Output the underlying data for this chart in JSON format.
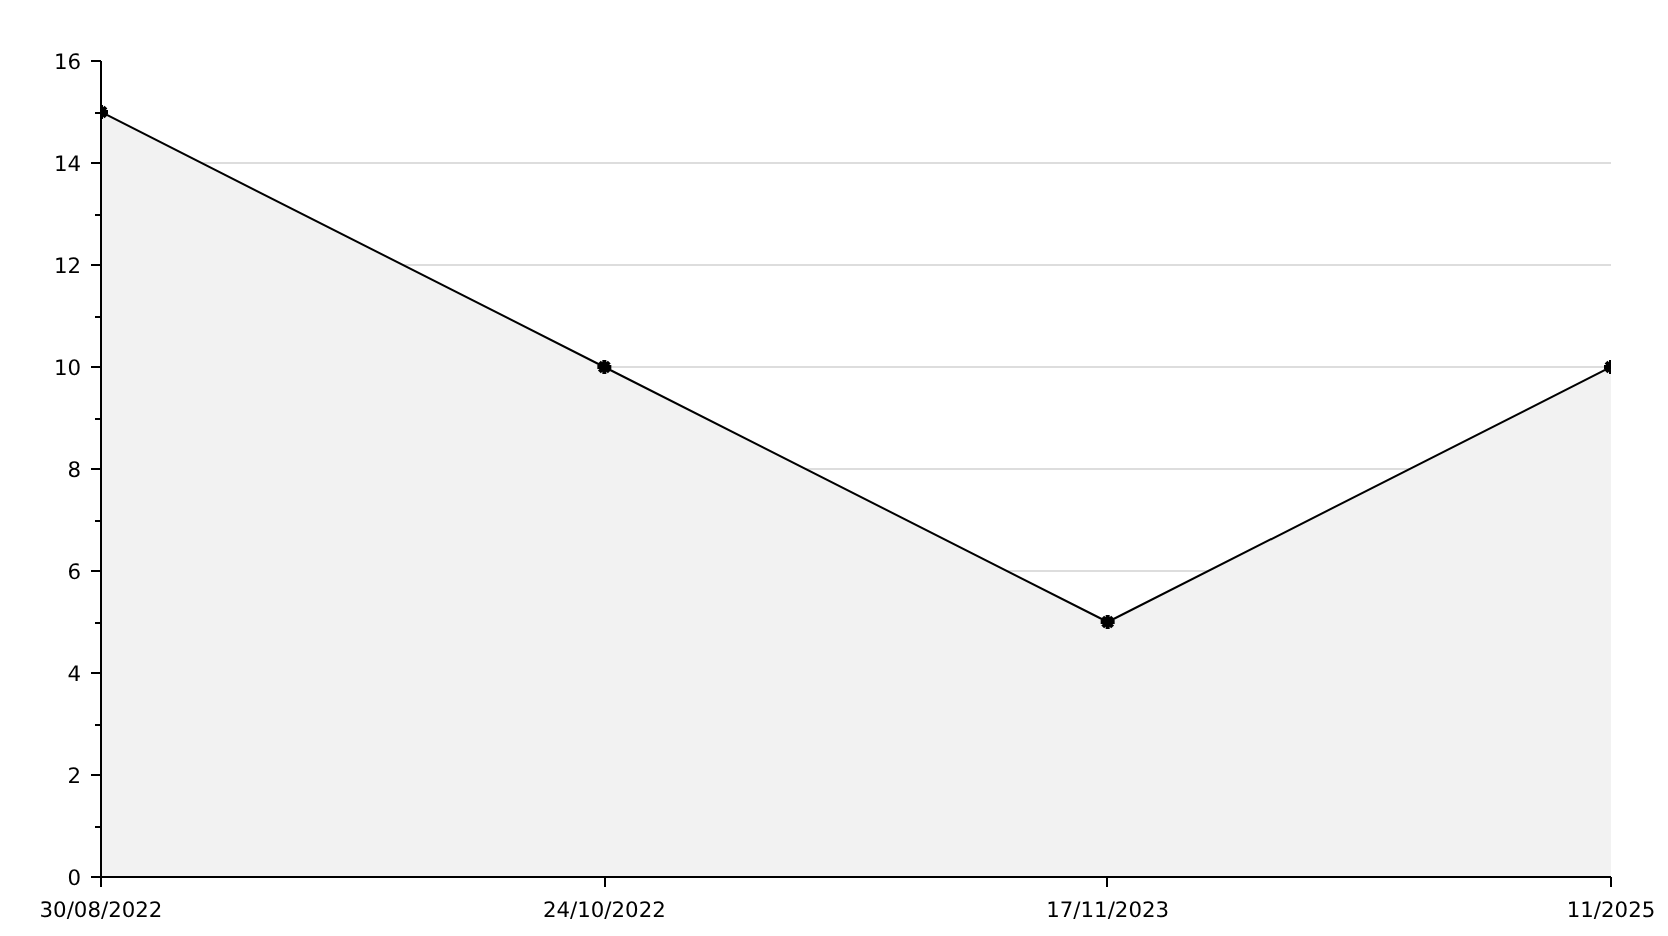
{
  "chart_data": {
    "type": "area",
    "categories": [
      "30/08/2022",
      "24/10/2022",
      "17/11/2023",
      "11/2025"
    ],
    "series": [
      {
        "color": "#000000",
        "values": [
          15,
          10,
          5,
          10
        ]
      }
    ],
    "ylim": [
      0,
      16
    ],
    "yticks": [
      0,
      2,
      4,
      6,
      8,
      10,
      12,
      14,
      16
    ],
    "grid": "y",
    "marker": "cross",
    "line_style": "solid"
  }
}
